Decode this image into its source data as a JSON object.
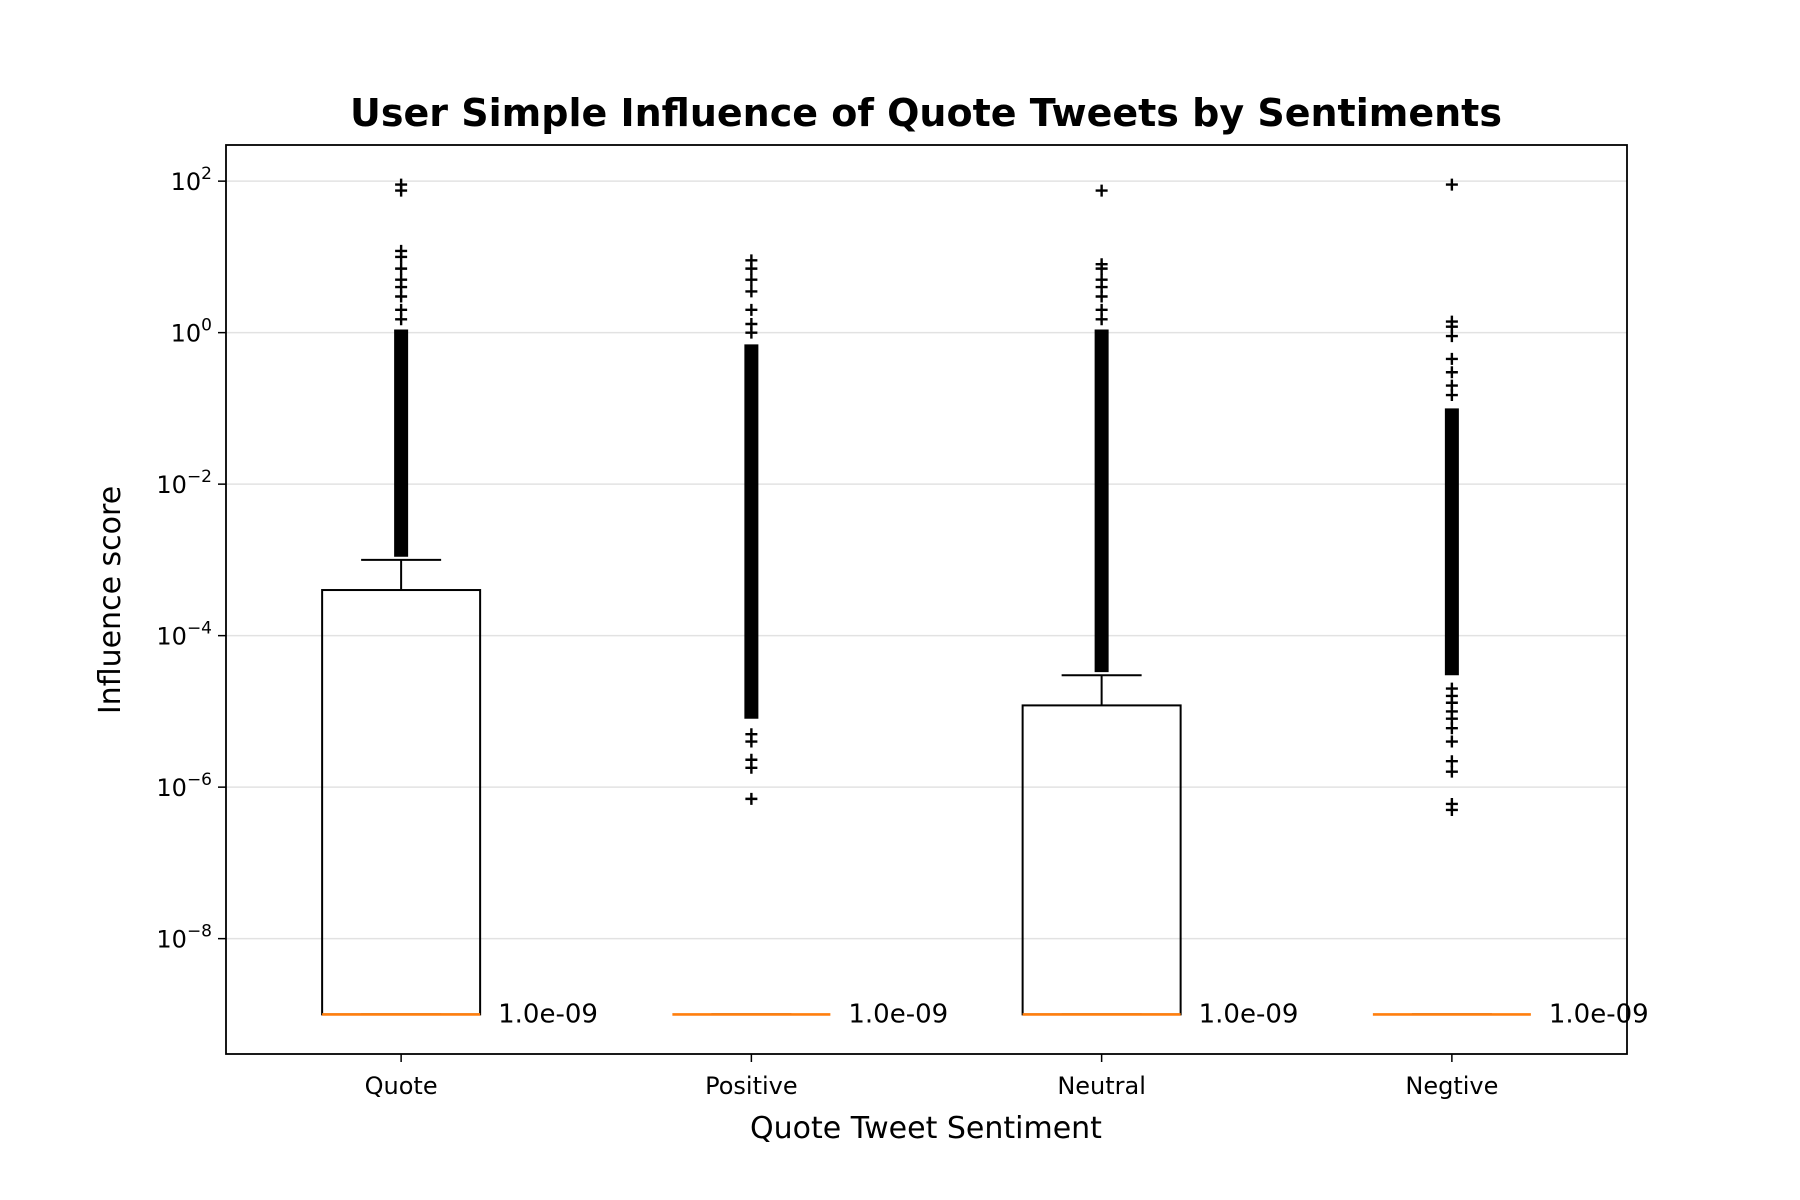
{
  "chart_data": {
    "type": "box",
    "title": "User Simple Influence of Quote Tweets by Sentiments",
    "xlabel": "Quote Tweet Sentiment",
    "ylabel": "Influence score",
    "yscale": "log",
    "ylim": [
      3e-10,
      300
    ],
    "y_ticks": [
      {
        "value": 100.0,
        "base": "10",
        "exp": "2"
      },
      {
        "value": 1.0,
        "base": "10",
        "exp": "0"
      },
      {
        "value": 0.01,
        "base": "10",
        "exp": "−2"
      },
      {
        "value": 0.0001,
        "base": "10",
        "exp": "−4"
      },
      {
        "value": 1e-06,
        "base": "10",
        "exp": "−6"
      },
      {
        "value": 1e-08,
        "base": "10",
        "exp": "−8"
      }
    ],
    "grid": "horizontal",
    "median_color": "#ff7f0e",
    "categories": [
      "Quote",
      "Positive",
      "Neutral",
      "Negtive"
    ],
    "boxes": [
      {
        "category": "Quote",
        "q1": 1e-09,
        "median": 1e-09,
        "q3": 0.0004,
        "whisker_low": 1e-09,
        "whisker_high": 0.001,
        "median_label": "1.0e-09",
        "outliers_dense": [
          0.0011,
          1.1
        ],
        "outliers": [
          1.5,
          2.0,
          3.0,
          4.0,
          5.0,
          7.0,
          10.0,
          12.0,
          75.0,
          90.0
        ]
      },
      {
        "category": "Positive",
        "q1": 1e-09,
        "median": 1e-09,
        "q3": 1e-09,
        "whisker_low": 1e-09,
        "whisker_high": 1e-09,
        "median_label": "1.0e-09",
        "outliers_dense": [
          8e-06,
          0.7
        ],
        "outliers": [
          7e-07,
          1.8e-06,
          2.3e-06,
          4e-06,
          5e-06,
          1.0,
          1.3,
          2.0,
          3.5,
          5.0,
          7.0,
          9.0
        ]
      },
      {
        "category": "Neutral",
        "q1": 1e-09,
        "median": 1e-09,
        "q3": 1.2e-05,
        "whisker_low": 1e-09,
        "whisker_high": 3e-05,
        "median_label": "1.0e-09",
        "outliers_dense": [
          3.3e-05,
          1.1
        ],
        "outliers": [
          1.5,
          2.0,
          3.0,
          4.0,
          5.0,
          7.0,
          8.0,
          75.0
        ]
      },
      {
        "category": "Negtive",
        "q1": 1e-09,
        "median": 1e-09,
        "q3": 1e-09,
        "whisker_low": 1e-09,
        "whisker_high": 1e-09,
        "median_label": "1.0e-09",
        "outliers_dense": [
          3e-05,
          0.1
        ],
        "outliers": [
          5e-07,
          6e-07,
          1.6e-06,
          2.2e-06,
          4e-06,
          6e-06,
          8e-06,
          1e-05,
          1.3e-05,
          1.6e-05,
          2e-05,
          0.15,
          0.2,
          0.3,
          0.45,
          0.9,
          1.2,
          1.4,
          90.0
        ]
      }
    ]
  }
}
